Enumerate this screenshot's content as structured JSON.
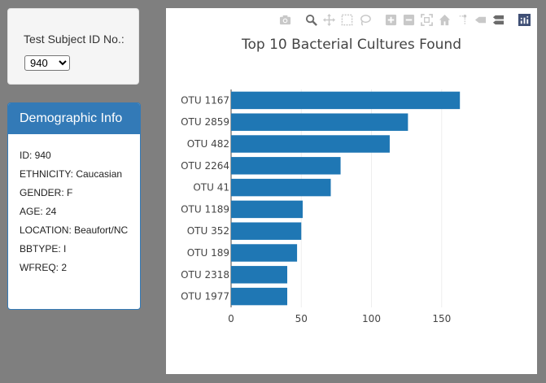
{
  "selector": {
    "label": "Test Subject ID No.:",
    "selected": "940"
  },
  "demographic": {
    "heading": "Demographic Info",
    "lines": [
      "ID: 940",
      "ETHNICITY: Caucasian",
      "GENDER: F",
      "AGE: 24",
      "LOCATION: Beaufort/NC",
      "BBTYPE: I",
      "WFREQ: 2"
    ]
  },
  "modebar": {
    "icons": [
      "camera-icon",
      "zoom-icon",
      "pan-icon",
      "box-select-icon",
      "lasso-select-icon",
      "zoom-in-icon",
      "zoom-out-icon",
      "autoscale-icon",
      "reset-axes-icon",
      "spike-lines-icon",
      "hover-closest-icon",
      "hover-compare-icon",
      "plotly-logo-icon"
    ],
    "colors": {
      "inactive": "#c8c8c8",
      "active": "#6b6b6b",
      "logo": "#3f4f75"
    }
  },
  "chart_data": {
    "type": "bar",
    "orientation": "horizontal",
    "title": "Top 10 Bacterial Cultures Found",
    "categories": [
      "OTU 1167",
      "OTU 2859",
      "OTU 482",
      "OTU 2264",
      "OTU 41",
      "OTU 1189",
      "OTU 352",
      "OTU 189",
      "OTU 2318",
      "OTU 1977"
    ],
    "values": [
      163,
      126,
      113,
      78,
      71,
      51,
      50,
      47,
      40,
      40
    ],
    "xticks": [
      0,
      50,
      100,
      150
    ],
    "xlim": [
      0,
      171
    ],
    "grid": true,
    "color": "#1f77b4"
  }
}
